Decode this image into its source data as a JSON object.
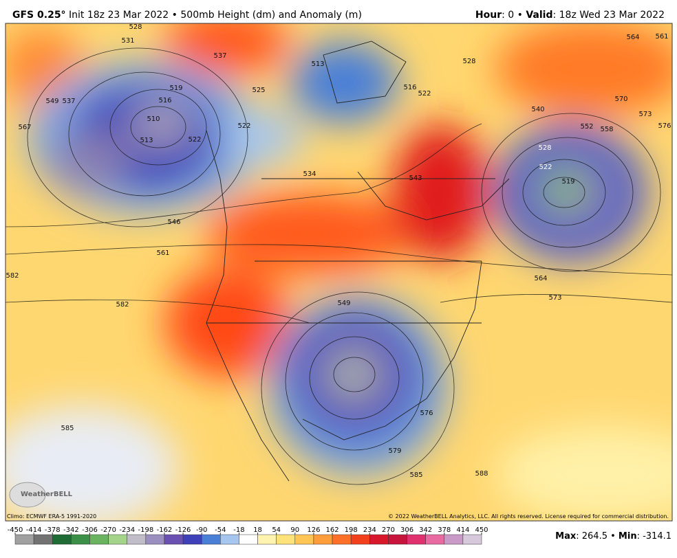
{
  "header": {
    "model": "GFS 0.25°",
    "title": "Init 18z 23 Mar 2022 • 500mb Height (dm) and Anomaly (m)",
    "hour_label": "Hour",
    "hour": ": 0 • ",
    "valid_label": "Valid",
    "valid": ": 18z Wed 23 Mar 2022"
  },
  "map": {
    "contour_labels": [
      "528",
      "531",
      "537",
      "549",
      "567",
      "537",
      "525",
      "522",
      "519",
      "516",
      "510",
      "513",
      "522",
      "534",
      "546",
      "561",
      "582",
      "582",
      "543",
      "516",
      "522",
      "528",
      "564",
      "561",
      "540",
      "552",
      "558",
      "570",
      "573",
      "576",
      "528",
      "522",
      "519",
      "564",
      "573",
      "549",
      "585",
      "579",
      "585",
      "588",
      "576",
      "513"
    ],
    "logo": "WeatherBELL"
  },
  "footer": {
    "climo": "Climo: ECMWF ERA-5 1991-2020",
    "copyright": "© 2022 WeatherBELL Analytics, LLC. All rights reserved. License required for commercial distribution.",
    "max_label": "Max",
    "max": ": 264.5 • ",
    "min_label": "Min",
    "min": ": -314.1"
  },
  "colorbar": {
    "ticks": [
      -450,
      -414,
      -378,
      -342,
      -306,
      -270,
      -234,
      -198,
      -162,
      -126,
      -90,
      -54,
      -18,
      18,
      54,
      90,
      126,
      162,
      198,
      234,
      270,
      306,
      342,
      378,
      414,
      450
    ],
    "colors": [
      "#a0a0a0",
      "#727272",
      "#1f6b35",
      "#3b8f47",
      "#6ab35f",
      "#a3d48a",
      "#c0bcc8",
      "#9b8fc0",
      "#6a50b0",
      "#3d40b8",
      "#4a7fd8",
      "#a6c6ef",
      "#ffffff",
      "#fff3b0",
      "#ffe27a",
      "#ffc555",
      "#ff9d3a",
      "#ff7028",
      "#f2401c",
      "#d8182a",
      "#c8143c",
      "#e0306e",
      "#e86aa0",
      "#c99ac8",
      "#d8c8dc"
    ]
  }
}
